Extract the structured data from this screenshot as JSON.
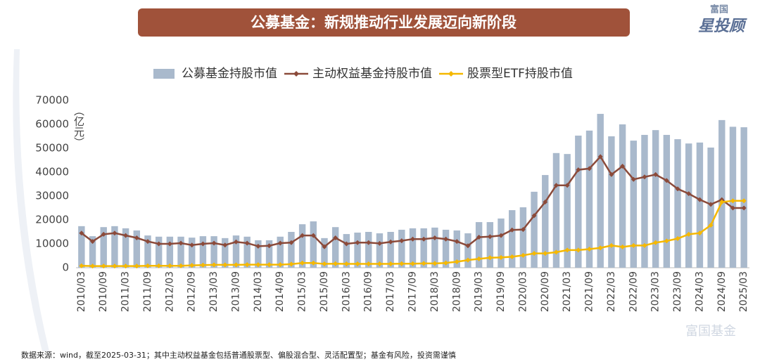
{
  "chart_data": {
    "type": "bar_line",
    "title": "公募基金：新规推动行业发展迈向新阶段",
    "logo_top": "富国",
    "logo_main": "星投顾",
    "watermark": "富国基金",
    "y_label": "（亿元）",
    "note": "数据来源：wind，截至2025-03-31；其中主动权益基金包括普通股票型、偏股混合型、灵活配置型；基金有风险，投资需谨慎",
    "categories": [
      "2010/03",
      null,
      "2010/09",
      null,
      "2011/03",
      null,
      "2011/09",
      null,
      "2012/03",
      null,
      "2012/09",
      null,
      "2013/03",
      null,
      "2013/09",
      null,
      "2014/03",
      null,
      "2014/09",
      null,
      "2015/03",
      null,
      "2015/09",
      null,
      "2016/03",
      null,
      "2016/09",
      null,
      "2017/03",
      null,
      "2017/09",
      null,
      "2018/03",
      null,
      "2018/09",
      null,
      "2019/03",
      null,
      "2019/09",
      null,
      "2020/03",
      null,
      "2020/09",
      null,
      "2021/03",
      null,
      "2021/09",
      null,
      "2022/03",
      null,
      "2022/09",
      null,
      "2023/03",
      null,
      "2023/09",
      null,
      "2024/03",
      null,
      "2024/09",
      null,
      "2025/03"
    ],
    "series": [
      {
        "name": "公募基金持股市值",
        "kind": "bar",
        "color": "#a9b9cc",
        "values": [
          17400,
          13200,
          17000,
          17400,
          16500,
          15600,
          13500,
          13000,
          13000,
          13000,
          12600,
          13200,
          13200,
          12400,
          13500,
          13000,
          11500,
          11500,
          13000,
          15000,
          18200,
          19400,
          12400,
          17000,
          14100,
          14700,
          15000,
          14400,
          15000,
          15900,
          16500,
          16500,
          16800,
          15900,
          15600,
          14400,
          19100,
          19100,
          20600,
          24100,
          25300,
          31800,
          38800,
          48000,
          47600,
          55300,
          57400,
          64400,
          55000,
          60000,
          53200,
          55600,
          57600,
          55600,
          53800,
          52000,
          52400,
          50300,
          61800,
          59000,
          58800
        ]
      },
      {
        "name": "主动权益基金持股市值",
        "kind": "line",
        "color": "#8b4a3a",
        "values": [
          14500,
          11000,
          14000,
          14500,
          13500,
          12500,
          11000,
          10000,
          10000,
          10300,
          9500,
          10000,
          10300,
          9500,
          10800,
          10300,
          9000,
          9200,
          10300,
          10500,
          13500,
          13500,
          8800,
          12500,
          10000,
          10500,
          10500,
          10200,
          10800,
          11300,
          12000,
          12000,
          12500,
          12000,
          11000,
          9200,
          12800,
          13000,
          13500,
          15800,
          16000,
          21800,
          27500,
          34500,
          34500,
          41000,
          41500,
          46500,
          39000,
          42500,
          37000,
          38000,
          39000,
          36500,
          33000,
          31000,
          28500,
          26500,
          28500,
          25000,
          25000
        ]
      },
      {
        "name": "股票型ETF持股市值",
        "kind": "line",
        "color": "#f5b800",
        "values": [
          800,
          700,
          700,
          700,
          700,
          700,
          800,
          800,
          800,
          800,
          1000,
          1100,
          1200,
          1200,
          1200,
          1300,
          1300,
          1300,
          1300,
          1500,
          2000,
          2000,
          1600,
          1700,
          1600,
          1600,
          1600,
          1600,
          1600,
          1700,
          1700,
          1800,
          1800,
          2000,
          2500,
          3200,
          3700,
          4200,
          4300,
          4600,
          5200,
          6000,
          6000,
          6500,
          7400,
          7400,
          7800,
          8300,
          9300,
          8700,
          9300,
          9300,
          10500,
          11200,
          12200,
          14000,
          14500,
          17800,
          27500,
          28000,
          28000
        ]
      }
    ],
    "ylim": [
      0,
      70000
    ],
    "yticks": [
      0,
      10000,
      20000,
      30000,
      40000,
      50000,
      60000,
      70000
    ]
  }
}
